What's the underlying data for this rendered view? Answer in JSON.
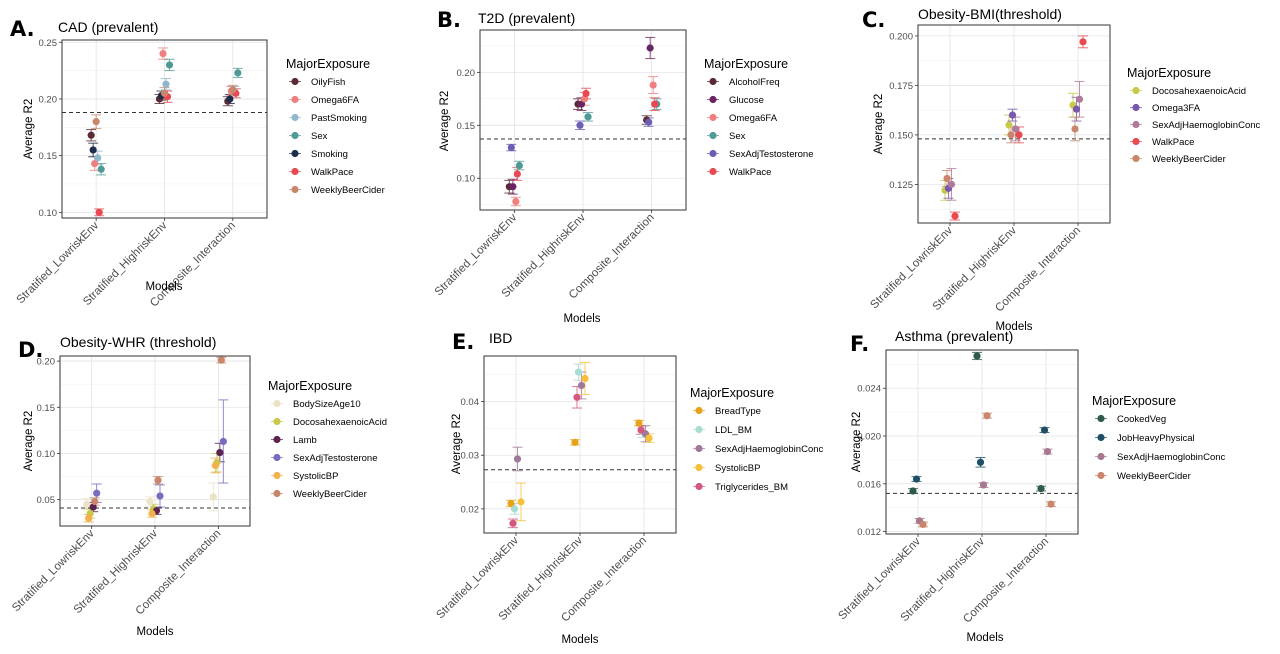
{
  "figure": {
    "common": {
      "xlabel": "Models",
      "ylabel": "Average R2",
      "categories": [
        "Stratified_LowriskEnv",
        "Stratified_HighriskEnv",
        "Composite_Interaction"
      ],
      "legend_title": "MajorExposure"
    }
  },
  "chart_data": [
    {
      "panel": "A.",
      "type": "scatter",
      "title": "CAD (prevalent)",
      "ylim": [
        0.095,
        0.252
      ],
      "yticks": [
        0.1,
        0.15,
        0.2,
        0.25
      ],
      "ytick_labels": [
        "0.10",
        "0.15",
        "0.20",
        "0.25"
      ],
      "baseline": 0.188,
      "grid": true,
      "legend_position": "right",
      "series": [
        {
          "name": "OilyFish",
          "color": "#5a2a35",
          "values": [
            0.168,
            0.2,
            0.198
          ],
          "err": [
            0.005,
            0.004,
            0.004
          ]
        },
        {
          "name": "Omega6FA",
          "color": "#f08080",
          "values": [
            0.143,
            0.24,
            0.207
          ],
          "err": [
            0.006,
            0.005,
            0.004
          ]
        },
        {
          "name": "PastSmoking",
          "color": "#8fb8cf",
          "values": [
            0.148,
            0.213,
            0.207
          ],
          "err": [
            0.006,
            0.005,
            0.004
          ]
        },
        {
          "name": "Sex",
          "color": "#4f9a97",
          "values": [
            0.138,
            0.23,
            0.223
          ],
          "err": [
            0.005,
            0.005,
            0.004
          ]
        },
        {
          "name": "Smoking",
          "color": "#1c2e4a",
          "values": [
            0.155,
            0.203,
            0.2
          ],
          "err": [
            0.006,
            0.004,
            0.004
          ]
        },
        {
          "name": "WalkPace",
          "color": "#e84a52",
          "values": [
            0.1,
            0.202,
            0.205
          ],
          "err": [
            0.003,
            0.005,
            0.004
          ]
        },
        {
          "name": "WeeklyBeerCider",
          "color": "#c9866a",
          "values": [
            0.18,
            0.205,
            0.208
          ],
          "err": [
            0.006,
            0.005,
            0.004
          ]
        }
      ]
    },
    {
      "panel": "B.",
      "type": "scatter",
      "title": "T2D (prevalent)",
      "ylim": [
        0.07,
        0.24
      ],
      "yticks": [
        0.1,
        0.15,
        0.2
      ],
      "ytick_labels": [
        "0.10",
        "0.15",
        "0.20"
      ],
      "baseline": 0.137,
      "grid": true,
      "legend_position": "right",
      "series": [
        {
          "name": "AlcoholFreq",
          "color": "#5a2a35",
          "values": [
            0.092,
            0.17,
            0.155
          ],
          "err": [
            0.006,
            0.005,
            0.004
          ]
        },
        {
          "name": "Glucose",
          "color": "#6b2463",
          "values": [
            0.092,
            0.17,
            0.223
          ],
          "err": [
            0.007,
            0.006,
            0.01
          ]
        },
        {
          "name": "Omega6FA",
          "color": "#f08080",
          "values": [
            0.078,
            0.175,
            0.188
          ],
          "err": [
            0.004,
            0.006,
            0.008
          ]
        },
        {
          "name": "Sex",
          "color": "#4f9a97",
          "values": [
            0.112,
            0.158,
            0.17
          ],
          "err": [
            0.004,
            0.004,
            0.005
          ]
        },
        {
          "name": "SexAdjTestosterone",
          "color": "#6b5fb5",
          "values": [
            0.129,
            0.15,
            0.153
          ],
          "err": [
            0.003,
            0.004,
            0.004
          ]
        },
        {
          "name": "WalkPace",
          "color": "#e84a52",
          "values": [
            0.104,
            0.18,
            0.17
          ],
          "err": [
            0.006,
            0.005,
            0.006
          ]
        }
      ]
    },
    {
      "panel": "C.",
      "type": "scatter",
      "title": "Obesity-BMI(threshold)",
      "ylim": [
        0.1055,
        0.2055
      ],
      "yticks": [
        0.125,
        0.15,
        0.175,
        0.2
      ],
      "ytick_labels": [
        "0.125",
        "0.150",
        "0.175",
        "0.200"
      ],
      "baseline": 0.148,
      "grid": true,
      "legend_position": "right",
      "series": [
        {
          "name": "DocosahexaenoicAcid",
          "color": "#c8c84a",
          "values": [
            0.122,
            0.155,
            0.165
          ],
          "err": [
            0.005,
            0.005,
            0.006
          ]
        },
        {
          "name": "Omega3FA",
          "color": "#7a58b0",
          "values": [
            0.123,
            0.16,
            0.163
          ],
          "err": [
            0.005,
            0.003,
            0.006
          ]
        },
        {
          "name": "SexAdjHaemoglobinConc",
          "color": "#b07a9a",
          "values": [
            0.125,
            0.153,
            0.168
          ],
          "err": [
            0.008,
            0.006,
            0.009
          ]
        },
        {
          "name": "WalkPace",
          "color": "#e84a52",
          "values": [
            0.109,
            0.15,
            0.197
          ],
          "err": [
            0.002,
            0.004,
            0.003
          ]
        },
        {
          "name": "WeeklyBeerCider",
          "color": "#c9866a",
          "values": [
            0.128,
            0.15,
            0.153
          ],
          "err": [
            0.004,
            0.004,
            0.006
          ]
        }
      ]
    },
    {
      "panel": "D.",
      "type": "scatter",
      "title": "Obesity-WHR (threshold)",
      "ylim": [
        0.0215,
        0.2055
      ],
      "yticks": [
        0.05,
        0.1,
        0.15,
        0.2
      ],
      "ytick_labels": [
        "0.05",
        "0.10",
        "0.15",
        "0.20"
      ],
      "baseline": 0.041,
      "grid": true,
      "legend_position": "right",
      "series": [
        {
          "name": "BodySizeAge10",
          "color": "#ece2c8",
          "values": [
            0.045,
            0.048,
            0.053
          ],
          "err": [
            0.006,
            0.005,
            0.015
          ]
        },
        {
          "name": "DocosahexaenoicAcid",
          "color": "#c8c84a",
          "values": [
            0.035,
            0.04,
            0.09
          ],
          "err": [
            0.005,
            0.005,
            0.01
          ]
        },
        {
          "name": "Lamb",
          "color": "#5a2350",
          "values": [
            0.042,
            0.038,
            0.101
          ],
          "err": [
            0.005,
            0.004,
            0.01
          ]
        },
        {
          "name": "SexAdjTestosterone",
          "color": "#7a6ac0",
          "values": [
            0.057,
            0.054,
            0.113
          ],
          "err": [
            0.01,
            0.012,
            0.045
          ]
        },
        {
          "name": "SystolicBP",
          "color": "#f2b14b",
          "values": [
            0.03,
            0.035,
            0.087
          ],
          "err": [
            0.004,
            0.004,
            0.008
          ]
        },
        {
          "name": "WeeklyBeerCider",
          "color": "#c9866a",
          "values": [
            0.048,
            0.071,
            0.201
          ],
          "err": [
            0.004,
            0.004,
            0.003
          ]
        }
      ]
    },
    {
      "panel": "E.",
      "type": "scatter",
      "title": "IBD",
      "ylim": [
        0.0155,
        0.0485
      ],
      "yticks": [
        0.02,
        0.03,
        0.04
      ],
      "ytick_labels": [
        "0.02",
        "0.03",
        "0.04"
      ],
      "baseline": 0.0273,
      "grid": true,
      "legend_position": "right",
      "series": [
        {
          "name": "BreadType",
          "color": "#e8a21a",
          "values": [
            0.021,
            0.0324,
            0.036
          ],
          "err": [
            0.0006,
            0.0005,
            0.0005
          ]
        },
        {
          "name": "LDL_BM",
          "color": "#a8dcd0",
          "values": [
            0.02,
            0.0455,
            0.0343
          ],
          "err": [
            0.001,
            0.0015,
            0.001
          ]
        },
        {
          "name": "SexAdjHaemoglobinConc",
          "color": "#a0789a",
          "values": [
            0.0293,
            0.043,
            0.034
          ],
          "err": [
            0.0022,
            0.0025,
            0.0015
          ]
        },
        {
          "name": "SystolicBP",
          "color": "#f7bf3a",
          "values": [
            0.0213,
            0.0443,
            0.0332
          ],
          "err": [
            0.0035,
            0.003,
            0.0008
          ]
        },
        {
          "name": "Triglycerides_BM",
          "color": "#d4587e",
          "values": [
            0.0173,
            0.0408,
            0.0347
          ],
          "err": [
            0.0008,
            0.002,
            0.0008
          ]
        }
      ]
    },
    {
      "panel": "F.",
      "type": "scatter",
      "title": "Asthma (prevalent)",
      "ylim": [
        0.0118,
        0.0272
      ],
      "yticks": [
        0.012,
        0.016,
        0.02,
        0.024
      ],
      "ytick_labels": [
        "0.012",
        "0.016",
        "0.020",
        "0.024"
      ],
      "baseline": 0.0152,
      "grid": true,
      "legend_position": "right",
      "series": [
        {
          "name": "CookedVeg",
          "color": "#2e5a4a",
          "values": [
            0.0154,
            0.0267,
            0.0156
          ],
          "err": [
            0.0002,
            0.0003,
            0.0002
          ]
        },
        {
          "name": "JobHeavyPhysical",
          "color": "#1f4f66",
          "values": [
            0.0164,
            0.0178,
            0.0205
          ],
          "err": [
            0.0002,
            0.0004,
            0.0002
          ]
        },
        {
          "name": "SexAdjHaemoglobinConc",
          "color": "#a87890",
          "values": [
            0.0129,
            0.0159,
            0.0187
          ],
          "err": [
            0.0002,
            0.0002,
            0.0002
          ]
        },
        {
          "name": "WeeklyBeerCider",
          "color": "#c9866a",
          "values": [
            0.0126,
            0.0217,
            0.0143
          ],
          "err": [
            0.0002,
            0.0002,
            0.0002
          ]
        }
      ]
    }
  ]
}
